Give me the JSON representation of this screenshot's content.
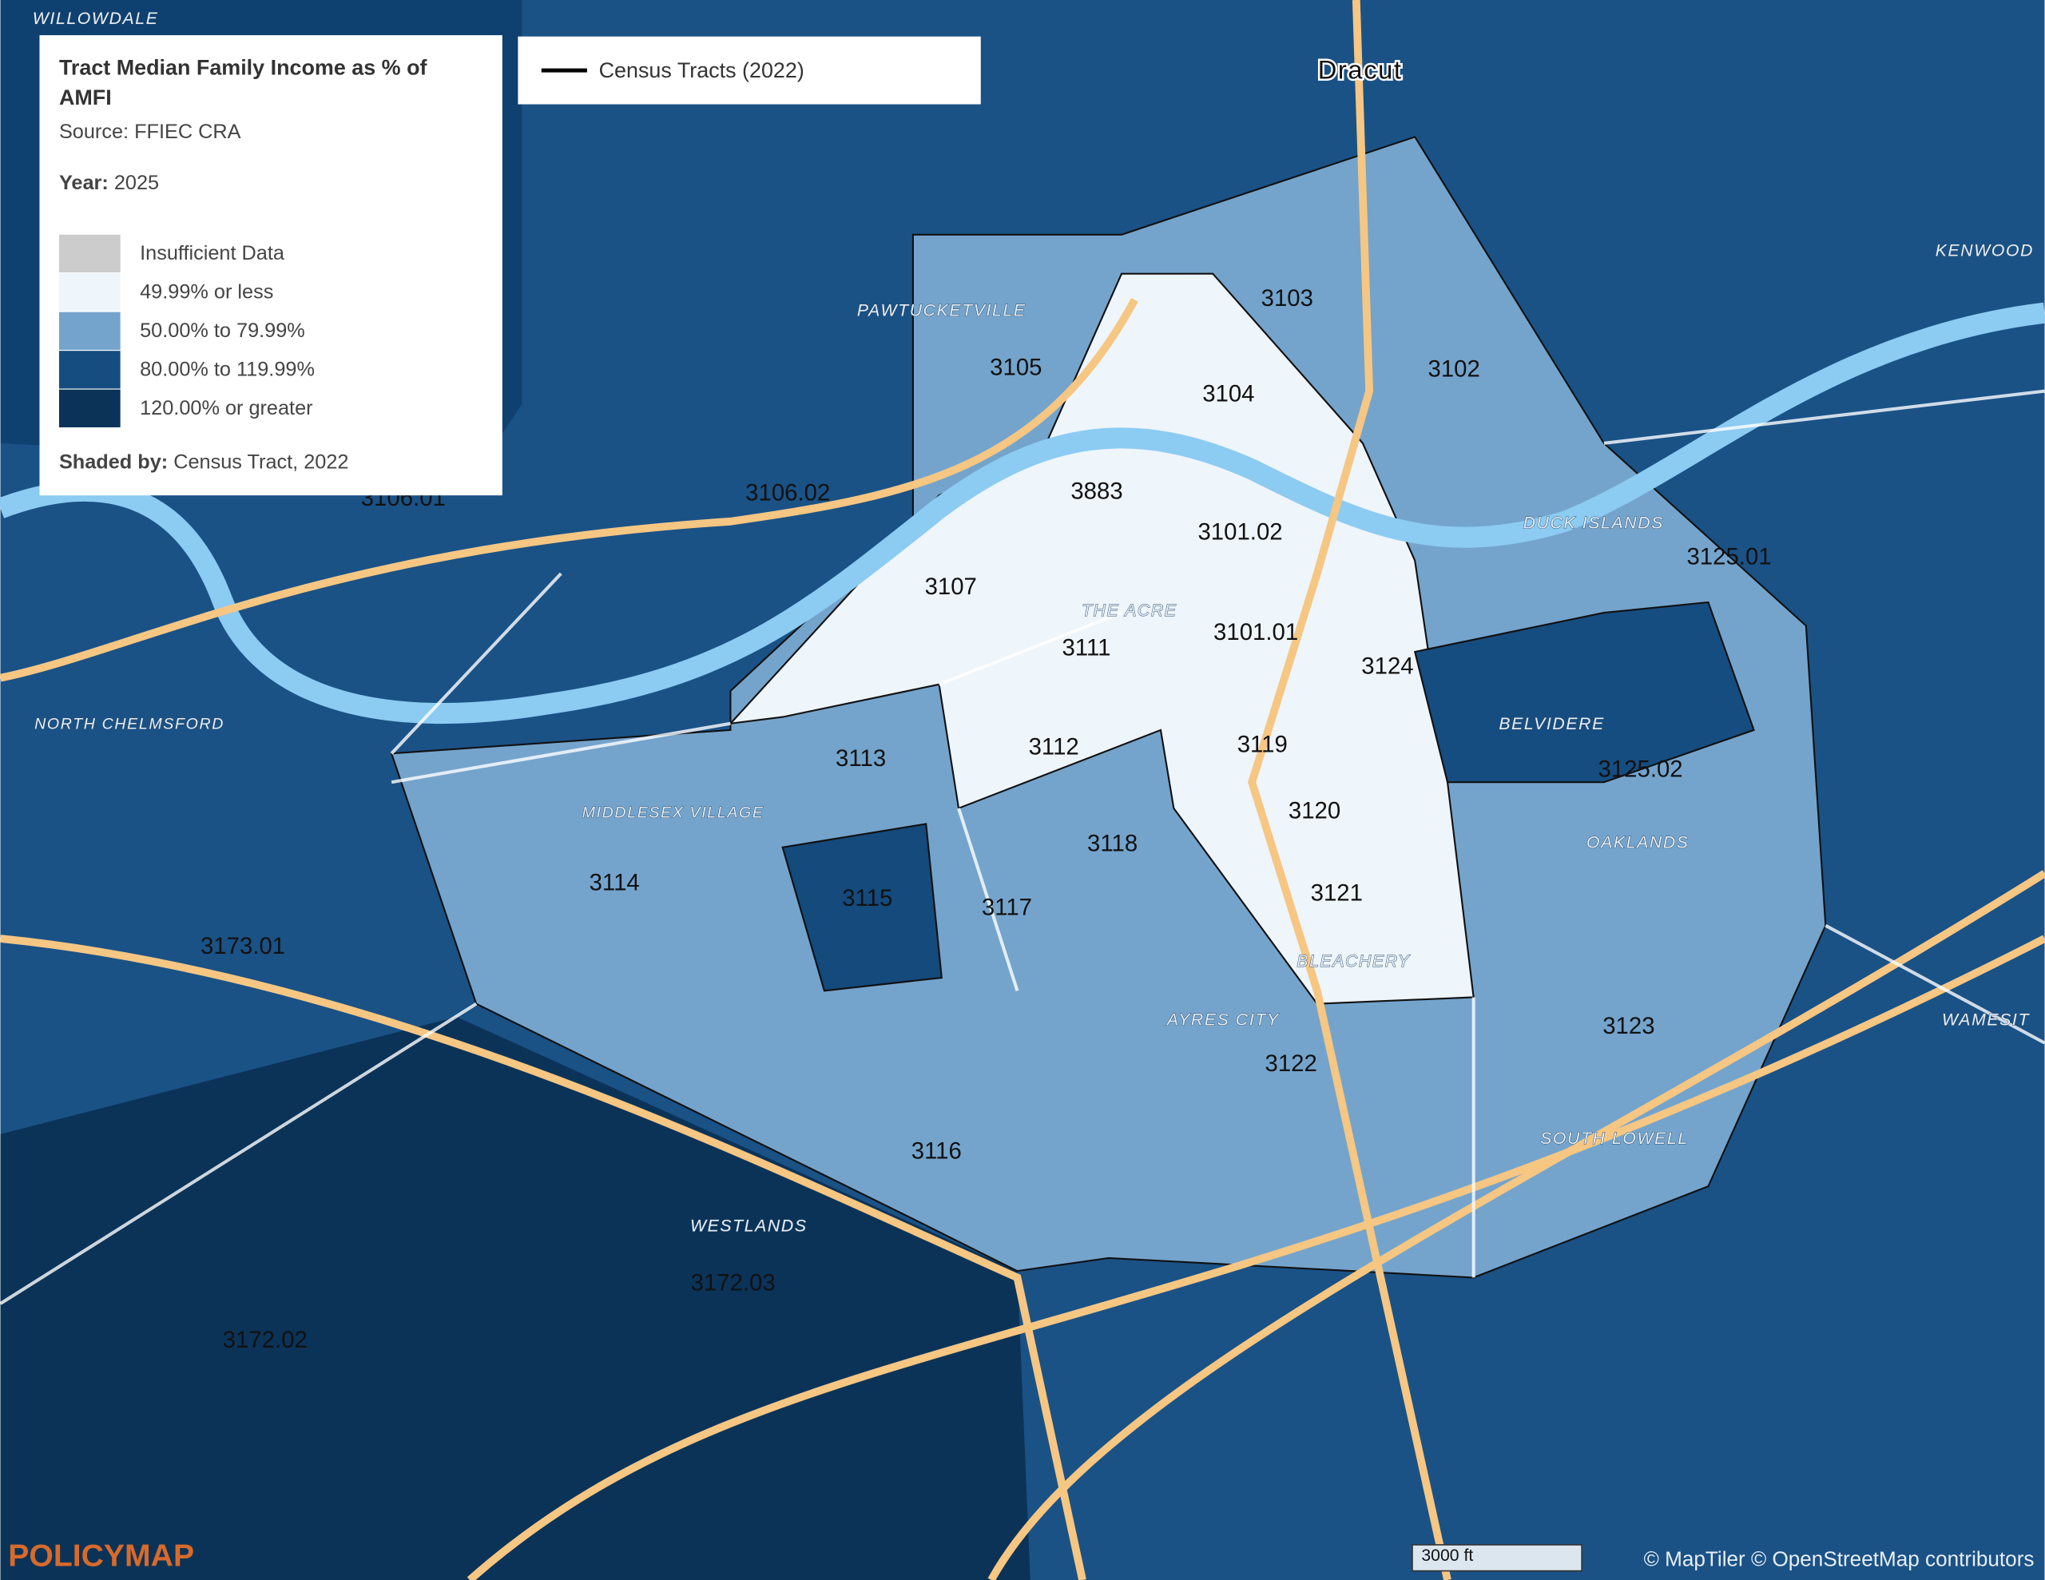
{
  "legend": {
    "title_line1": "Tract Median Family Income as % of",
    "title_line2": "AMFI",
    "source": "Source: FFIEC CRA",
    "year_label": "Year:",
    "year": " 2025",
    "items": [
      {
        "label": "Insufficient Data",
        "color": "#cccccc"
      },
      {
        "label": "49.99% or less",
        "color": "#eef5fb"
      },
      {
        "label": "50.00% to 79.99%",
        "color": "#74a4cc"
      },
      {
        "label": "80.00% to 119.99%",
        "color": "#164d80"
      },
      {
        "label": "120.00% or greater",
        "color": "#0b3358"
      }
    ],
    "shaded_label": "Shaded by:",
    "shaded_by": " Census Tract, 2022"
  },
  "layer_legend": "Census Tracts (2022)",
  "tracts": [
    "3103",
    "3105",
    "3102",
    "3104",
    "3106.02",
    "3883",
    "3101.02",
    "3106.01",
    "3107",
    "3125.01",
    "3111",
    "3101.01",
    "3124",
    "3113",
    "3112",
    "3119",
    "3125.02",
    "3120",
    "3118",
    "3114",
    "3115",
    "3117",
    "3121",
    "3173.01",
    "3123",
    "3122",
    "3116",
    "3172.03",
    "3172.02"
  ],
  "places": [
    "WILLOWDALE",
    "Dracut",
    "KENWOOD",
    "PAWTUCKETVILLE",
    "DUCK ISLANDS",
    "THE ACRE",
    "NORTH CHELMSFORD",
    "BELVIDERE",
    "MIDDLESEX VILLAGE",
    "OAKLANDS",
    "BLEACHERY",
    "WAMESIT",
    "AYRES CITY",
    "SOUTH LOWELL",
    "WESTLANDS"
  ],
  "logo": "POLICYMAP",
  "scale": "3000 ft",
  "attribution": "© MapTiler © OpenStreetMap contributors"
}
